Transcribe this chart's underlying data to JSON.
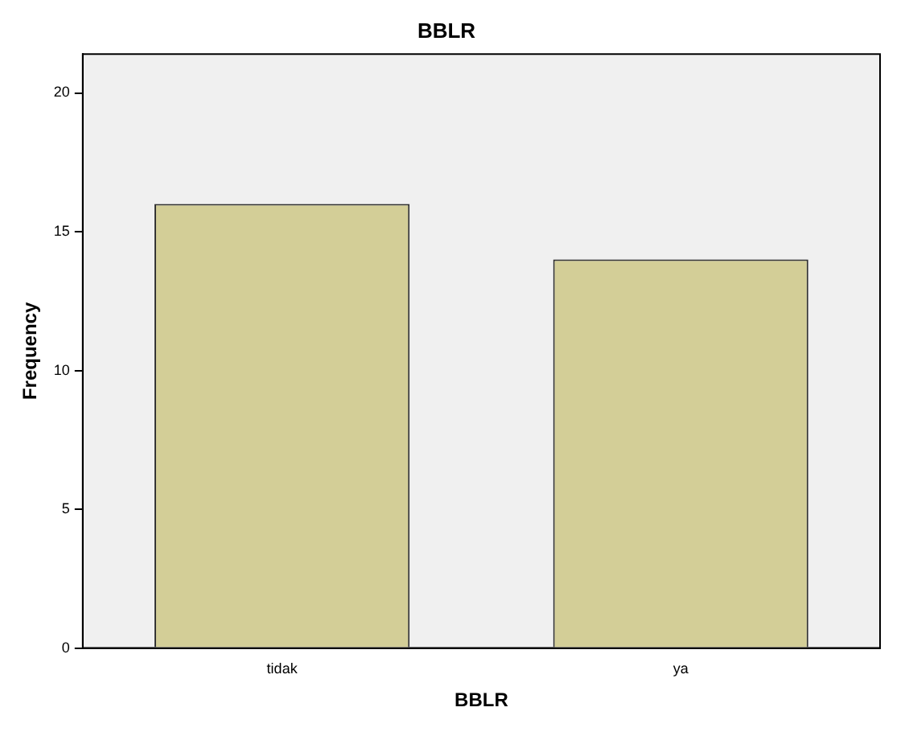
{
  "chart_data": {
    "type": "bar",
    "title": "BBLR",
    "xlabel": "BBLR",
    "ylabel": "Frequency",
    "categories": [
      "tidak",
      "ya"
    ],
    "values": [
      16,
      14
    ],
    "color": "#d3ce97",
    "ylim": [
      0,
      21.4
    ],
    "yticks": [
      0,
      5,
      10,
      15,
      20
    ],
    "grid": false,
    "legend": false
  }
}
